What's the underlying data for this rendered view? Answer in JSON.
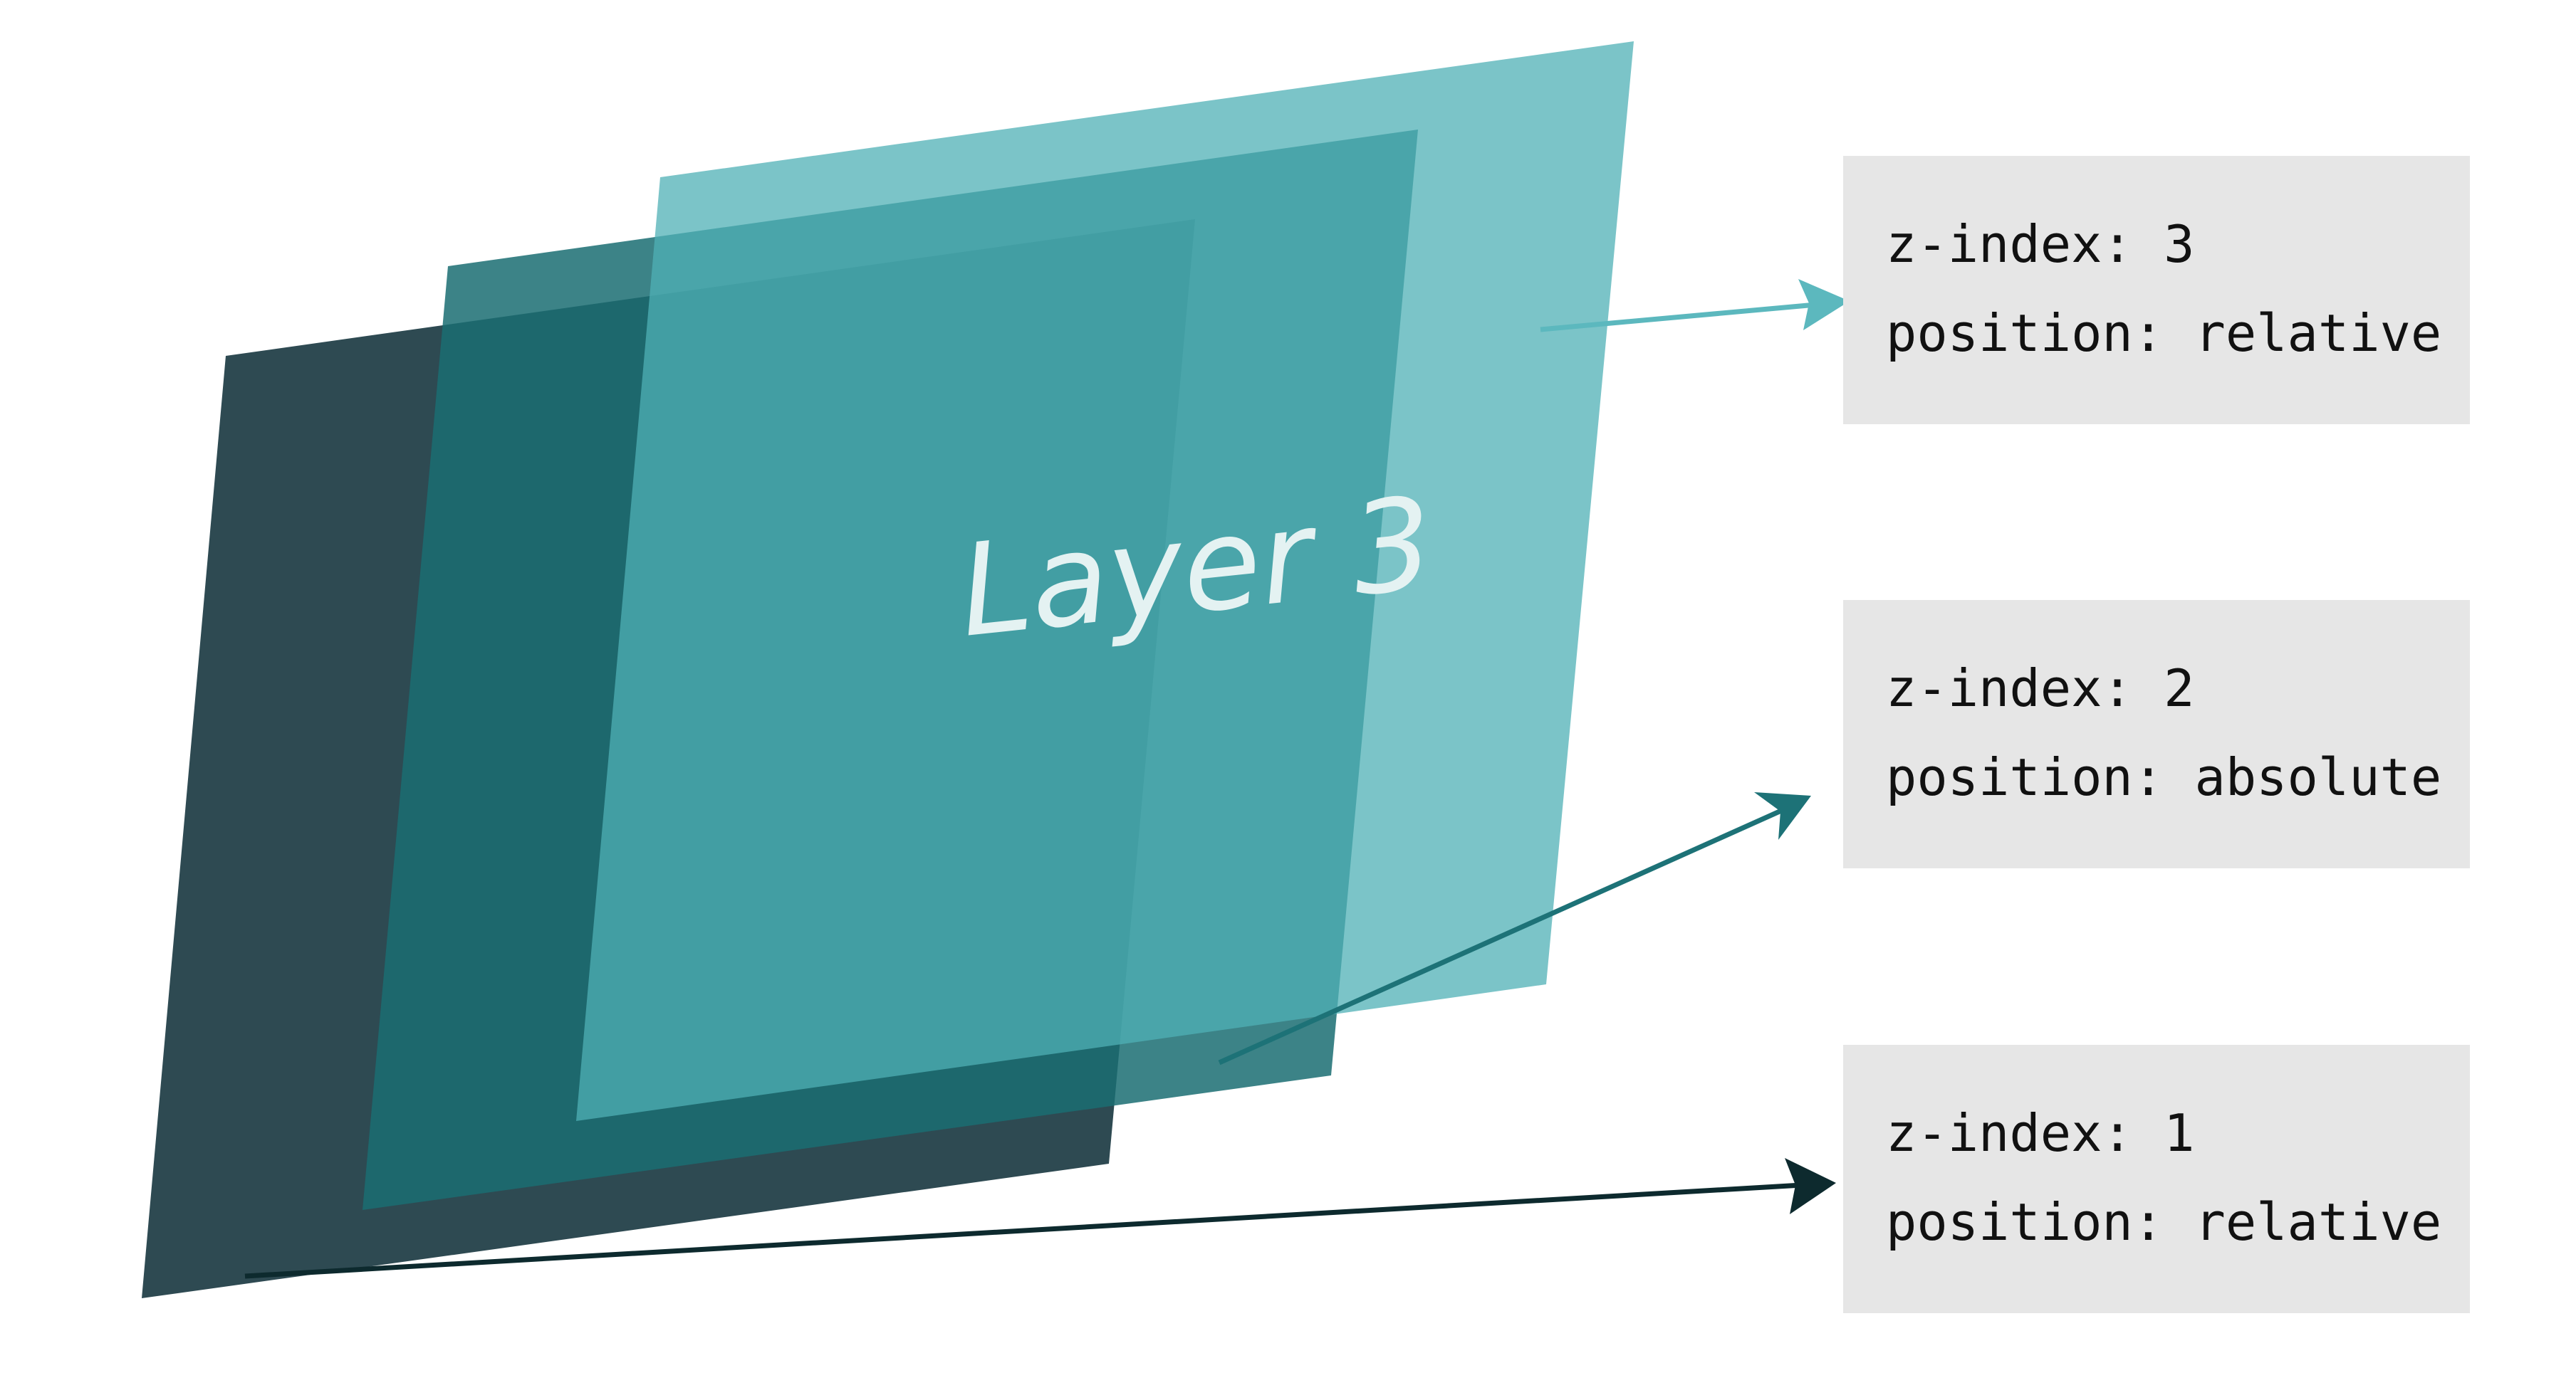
{
  "title_label": "Layer 3",
  "colors": {
    "layer_1": "#2e4a52",
    "layer_2": "#1a6d72",
    "layer_3": "#4fb0b6",
    "arrow_1": "#0d2a2e",
    "arrow_2": "#1d7277",
    "arrow_3": "#5cb8be",
    "box_bg": "#e6e6e6",
    "title_text": "#e4f2f2"
  },
  "boxes": [
    {
      "z_index_line": "z-index: 3",
      "position_line": "position: relative"
    },
    {
      "z_index_line": "z-index: 2",
      "position_line": "position: absolute"
    },
    {
      "z_index_line": "z-index: 1",
      "position_line": "position: relative"
    }
  ]
}
